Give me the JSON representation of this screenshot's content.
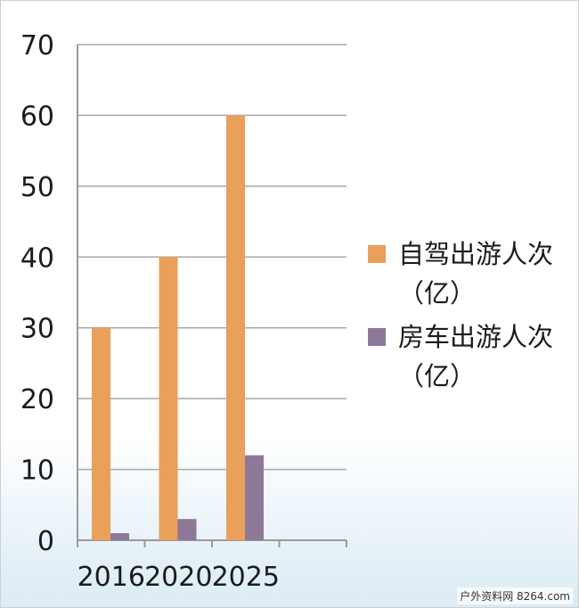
{
  "chart_data": {
    "type": "bar",
    "categories": [
      "2016",
      "2020",
      "2025"
    ],
    "series": [
      {
        "name": "自驾出游人次（亿）",
        "values": [
          30,
          40,
          60
        ],
        "color": "#e8a05a"
      },
      {
        "name": "房车出游人次（亿）",
        "values": [
          1,
          3,
          12
        ],
        "color": "#8e789a"
      }
    ],
    "ylim": [
      0,
      70
    ],
    "yticks": [
      "0",
      "10",
      "20",
      "30",
      "40",
      "50",
      "60",
      "70"
    ],
    "grid": true,
    "legend_position": "right"
  },
  "watermark": "户外资料网 8264.com",
  "colors": {
    "axis": "#9a9a9a",
    "grid": "#a8a8a8",
    "text": "#1b1b1b"
  }
}
